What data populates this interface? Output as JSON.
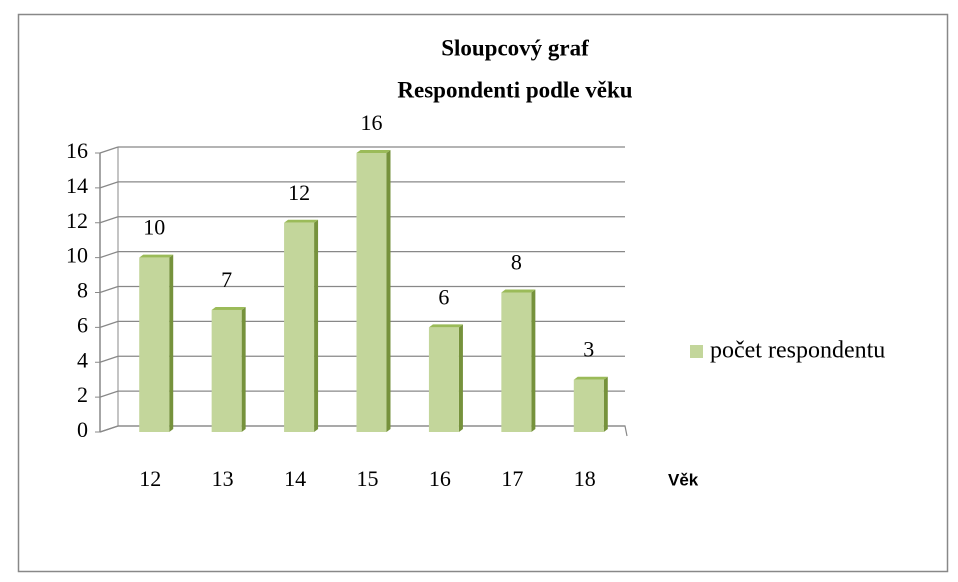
{
  "chart_data": {
    "type": "bar",
    "title": "Sloupcový graf",
    "subtitle": "Respondenti podle věku",
    "x_label": "Věk",
    "categories": [
      "12",
      "13",
      "14",
      "15",
      "16",
      "17",
      "18"
    ],
    "series": [
      {
        "name": "počet respondentu",
        "color": "#c3d69b",
        "values": [
          10,
          7,
          12,
          16,
          6,
          8,
          3
        ]
      }
    ],
    "ylim": [
      0,
      16
    ],
    "yticks": [
      0,
      2,
      4,
      6,
      8,
      10,
      12,
      14,
      16
    ],
    "grid": true,
    "legend": "right"
  }
}
